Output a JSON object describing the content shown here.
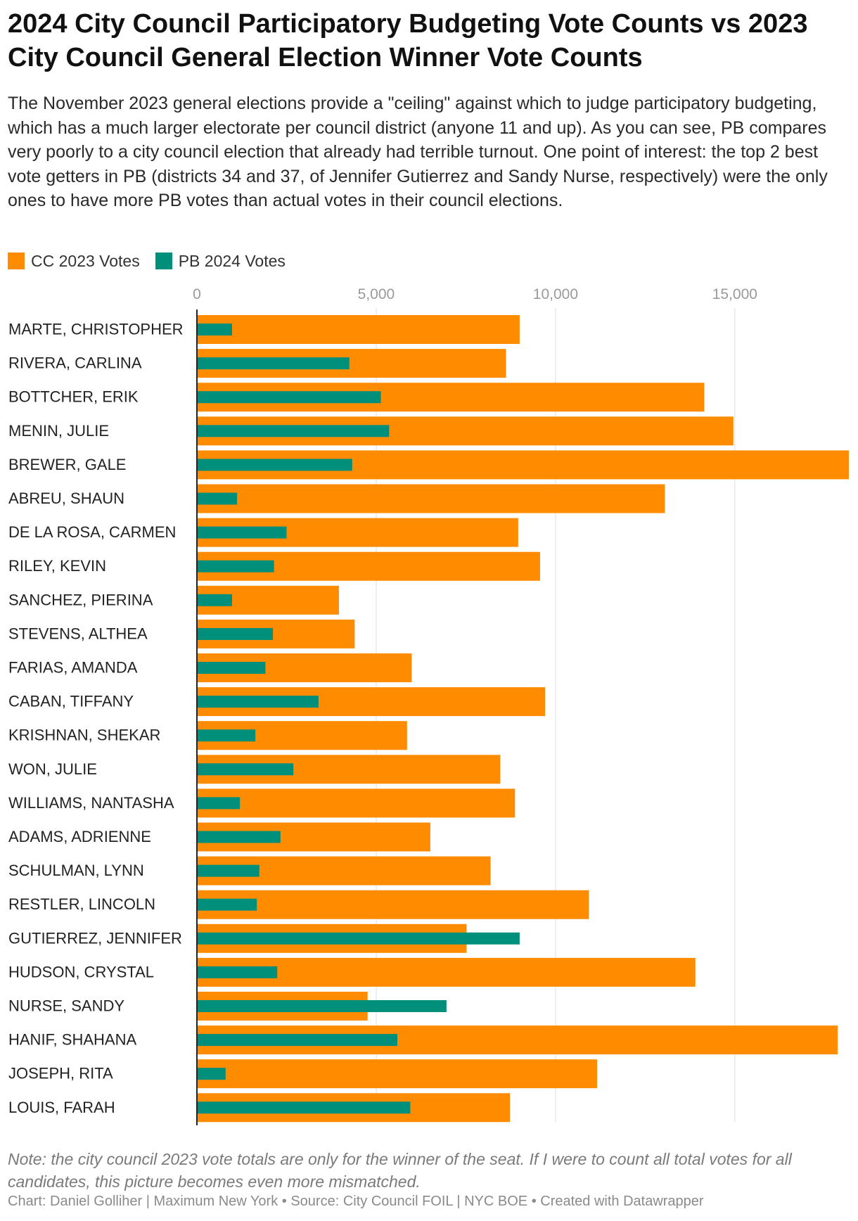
{
  "title": "2024 City Council Participatory Budgeting Vote Counts vs 2023 City Council General Election Winner Vote Counts",
  "subtitle": "The November 2023 general elections provide a \"ceiling\" against which to judge participatory budgeting, which has a much larger electorate per council district (anyone 11 and up). As you can see, PB compares very poorly to a city council election that already had terrible turnout. One point of interest: the top 2 best vote getters in PB (districts 34 and 37, of Jennifer Gutierrez and Sandy Nurse, respectively) were the only ones to have more PB votes than actual votes in their council elections.",
  "legend": [
    {
      "label": "CC 2023 Votes",
      "color": "#ff8c00"
    },
    {
      "label": "PB 2024 Votes",
      "color": "#008f7a"
    }
  ],
  "note": "Note: the city council 2023 vote totals are only for the winner of the seat. If I were to count all total votes for all candidates, this picture becomes even more mismatched.",
  "footer": {
    "chart_by": "Chart: Daniel Golliher | Maximum New York",
    "source": "Source: City Council FOIL | NYC BOE",
    "created": "Created with Datawrapper"
  },
  "chart_data": {
    "type": "bar",
    "orientation": "horizontal",
    "xlim": [
      0,
      18200
    ],
    "x_ticks": [
      0,
      5000,
      10000,
      15000
    ],
    "x_tick_labels": [
      "0",
      "5,000",
      "10,000",
      "15,000"
    ],
    "grid": true,
    "legend_position": "top-left",
    "categories": [
      "MARTE, CHRISTOPHER",
      "RIVERA, CARLINA",
      "BOTTCHER, ERIK",
      "MENIN, JULIE",
      "BREWER, GALE",
      "ABREU, SHAUN",
      "DE LA ROSA, CARMEN",
      "RILEY, KEVIN",
      "SANCHEZ, PIERINA",
      "STEVENS, ALTHEA",
      "FARIAS, AMANDA",
      "CABAN, TIFFANY",
      "KRISHNAN, SHEKAR",
      "WON, JULIE",
      "WILLIAMS, NANTASHA",
      "ADAMS, ADRIENNE",
      "SCHULMAN, LYNN",
      "RESTLER, LINCOLN",
      "GUTIERREZ, JENNIFER",
      "HUDSON, CRYSTAL",
      "NURSE, SANDY",
      "HANIF, SHAHANA",
      "JOSEPH, RITA",
      "LOUIS, FARAH"
    ],
    "series": [
      {
        "name": "CC 2023 Votes",
        "color": "#ff8c00",
        "values": [
          9000,
          8620,
          14150,
          14960,
          18180,
          13050,
          8960,
          9570,
          3960,
          4400,
          5990,
          9710,
          5860,
          8460,
          8870,
          6510,
          8190,
          10930,
          7520,
          13900,
          4760,
          17870,
          11160,
          8730
        ]
      },
      {
        "name": "PB 2024 Votes",
        "color": "#008f7a",
        "values": [
          980,
          4250,
          5130,
          5360,
          4330,
          1120,
          2500,
          2150,
          980,
          2120,
          1910,
          3390,
          1630,
          2690,
          1200,
          2330,
          1740,
          1670,
          9000,
          2240,
          6960,
          5590,
          800,
          5950
        ]
      }
    ]
  }
}
